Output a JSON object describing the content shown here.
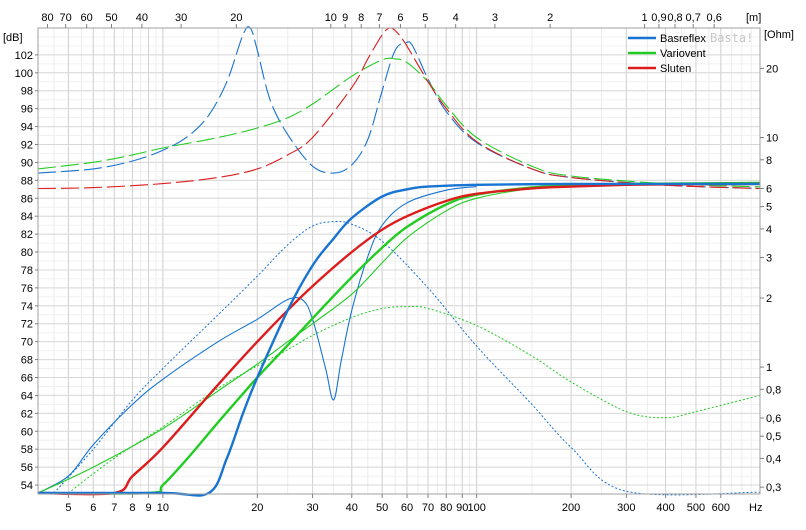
{
  "chart_data": {
    "type": "line",
    "watermark": "Basta!",
    "y_left_unit": "[dB]",
    "y_right_unit": "[Ohm]",
    "top_unit": "[m]",
    "x_unit": "Hz",
    "x_scale": "log",
    "y_right_scale": "log",
    "x_range": [
      4,
      800
    ],
    "y_left_range": [
      53,
      105
    ],
    "y_right_range": [
      0.28,
      30
    ],
    "grid": true,
    "legend_position": "top-right",
    "x_ticks": [
      {
        "v": 5,
        "label": "5"
      },
      {
        "v": 6,
        "label": "6"
      },
      {
        "v": 7,
        "label": "7"
      },
      {
        "v": 8,
        "label": "8"
      },
      {
        "v": 9,
        "label": "9"
      },
      {
        "v": 10,
        "label": "10"
      },
      {
        "v": 20,
        "label": "20"
      },
      {
        "v": 30,
        "label": "30"
      },
      {
        "v": 40,
        "label": "40"
      },
      {
        "v": 50,
        "label": "50"
      },
      {
        "v": 60,
        "label": "60"
      },
      {
        "v": 70,
        "label": "70"
      },
      {
        "v": 80,
        "label": "80"
      },
      {
        "v": 90,
        "label": "90"
      },
      {
        "v": 100,
        "label": "100"
      },
      {
        "v": 200,
        "label": "200"
      },
      {
        "v": 300,
        "label": "300"
      },
      {
        "v": 400,
        "label": "400"
      },
      {
        "v": 500,
        "label": "500"
      },
      {
        "v": 600,
        "label": "600"
      }
    ],
    "top_ticks": [
      {
        "v": 80,
        "label": "80"
      },
      {
        "v": 70,
        "label": "70"
      },
      {
        "v": 60,
        "label": "60"
      },
      {
        "v": 50,
        "label": "50"
      },
      {
        "v": 40,
        "label": "40"
      },
      {
        "v": 30,
        "label": "30"
      },
      {
        "v": 20,
        "label": "20"
      },
      {
        "v": 10,
        "label": "10"
      },
      {
        "v": 9,
        "label": "9"
      },
      {
        "v": 8,
        "label": "8"
      },
      {
        "v": 7,
        "label": "7"
      },
      {
        "v": 6,
        "label": "6"
      },
      {
        "v": 5,
        "label": "5"
      },
      {
        "v": 4,
        "label": "4"
      },
      {
        "v": 3,
        "label": "3"
      },
      {
        "v": 2,
        "label": "2"
      },
      {
        "v": 1,
        "label": "1"
      },
      {
        "v": 0.9,
        "label": "0,9"
      },
      {
        "v": 0.8,
        "label": "0,8"
      },
      {
        "v": 0.7,
        "label": "0,7"
      },
      {
        "v": 0.6,
        "label": "0,6"
      }
    ],
    "y_left_ticks": [
      {
        "v": 54,
        "label": "54"
      },
      {
        "v": 56,
        "label": "56"
      },
      {
        "v": 58,
        "label": "58"
      },
      {
        "v": 60,
        "label": "60"
      },
      {
        "v": 62,
        "label": "62"
      },
      {
        "v": 64,
        "label": "64"
      },
      {
        "v": 66,
        "label": "66"
      },
      {
        "v": 68,
        "label": "68"
      },
      {
        "v": 70,
        "label": "70"
      },
      {
        "v": 72,
        "label": "72"
      },
      {
        "v": 74,
        "label": "74"
      },
      {
        "v": 76,
        "label": "76"
      },
      {
        "v": 78,
        "label": "78"
      },
      {
        "v": 80,
        "label": "80"
      },
      {
        "v": 82,
        "label": "82"
      },
      {
        "v": 84,
        "label": "84"
      },
      {
        "v": 86,
        "label": "86"
      },
      {
        "v": 88,
        "label": "88"
      },
      {
        "v": 90,
        "label": "90"
      },
      {
        "v": 92,
        "label": "92"
      },
      {
        "v": 94,
        "label": "94"
      },
      {
        "v": 96,
        "label": "96"
      },
      {
        "v": 98,
        "label": "98"
      },
      {
        "v": 100,
        "label": "100"
      },
      {
        "v": 102,
        "label": "102"
      }
    ],
    "y_right_ticks": [
      {
        "v": 0.3,
        "label": "0,3"
      },
      {
        "v": 0.4,
        "label": "0,4"
      },
      {
        "v": 0.5,
        "label": "0,5"
      },
      {
        "v": 0.6,
        "label": "0,6"
      },
      {
        "v": 0.8,
        "label": "0,8"
      },
      {
        "v": 1,
        "label": "1"
      },
      {
        "v": 2,
        "label": "2"
      },
      {
        "v": 3,
        "label": "3"
      },
      {
        "v": 4,
        "label": "4"
      },
      {
        "v": 5,
        "label": "5"
      },
      {
        "v": 6,
        "label": "6"
      },
      {
        "v": 8,
        "label": "8"
      },
      {
        "v": 10,
        "label": "10"
      },
      {
        "v": 20,
        "label": "20"
      }
    ],
    "series": [
      {
        "name": "Basreflex",
        "color": "#1874d2",
        "style": "thick",
        "axis": "left",
        "x": [
          4,
          10,
          14,
          16,
          18,
          20,
          25,
          30,
          35,
          40,
          50,
          60,
          70,
          100,
          200,
          400,
          800
        ],
        "y": [
          53,
          53,
          53,
          57,
          62,
          66,
          73.5,
          78.5,
          81.5,
          83.8,
          86.2,
          87,
          87.3,
          87.5,
          87.6,
          87.6,
          87.6
        ]
      },
      {
        "name": "Variovent",
        "color": "#22cc22",
        "style": "thick",
        "axis": "left",
        "x": [
          4,
          9,
          10,
          12,
          15,
          20,
          25,
          30,
          40,
          50,
          60,
          80,
          100,
          150,
          200,
          300,
          800
        ],
        "y": [
          53,
          53,
          54,
          57,
          61,
          66,
          69.6,
          72.6,
          77.2,
          80.5,
          82.8,
          85.3,
          86.4,
          87.2,
          87.4,
          87.6,
          87.7
        ]
      },
      {
        "name": "Sluten",
        "color": "#dd1c1c",
        "style": "thick",
        "axis": "left",
        "x": [
          4,
          7,
          8,
          10,
          15,
          20,
          25,
          30,
          40,
          50,
          60,
          80,
          100,
          150,
          200,
          300,
          400,
          800
        ],
        "y": [
          53,
          53,
          55,
          58.2,
          65.2,
          70,
          73.5,
          76.2,
          80,
          82.5,
          84,
          85.7,
          86.5,
          87.1,
          87.3,
          87.5,
          87.55,
          87.6
        ]
      },
      {
        "name": "",
        "color": "#1874d2",
        "style": "thin",
        "axis": "left",
        "x": [
          4,
          5,
          6,
          8,
          10,
          15,
          20,
          25,
          28,
          30,
          33,
          35,
          37,
          40,
          45,
          50,
          60,
          80,
          100
        ],
        "y": [
          53,
          55,
          58.5,
          63,
          65.8,
          70,
          72.5,
          74.7,
          74.6,
          72.5,
          67,
          63.5,
          67.8,
          73.5,
          79.5,
          83,
          85.5,
          86.9,
          87.3
        ]
      },
      {
        "name": "",
        "color": "#22cc22",
        "style": "thin",
        "axis": "left",
        "x": [
          4,
          6,
          10,
          15,
          20,
          25,
          30,
          40,
          50,
          60,
          80,
          100,
          150,
          200,
          300,
          800
        ],
        "y": [
          53,
          56,
          60.3,
          64.5,
          67.5,
          70,
          72,
          75.3,
          78.8,
          81.6,
          84.6,
          86,
          87.1,
          87.4,
          87.6,
          87.7
        ]
      },
      {
        "name": "",
        "color": "#1874d2",
        "style": "dotted",
        "axis": "left",
        "x": [
          4.5,
          6,
          8,
          10,
          15,
          20,
          25,
          30,
          35,
          40,
          50,
          70,
          100,
          150,
          200,
          300,
          800
        ],
        "y": [
          53,
          58,
          63.5,
          67,
          73,
          77.3,
          80.8,
          82.9,
          83.4,
          83.1,
          81.2,
          76,
          69.5,
          63,
          58.2,
          53.3,
          53.2
        ]
      },
      {
        "name": "",
        "color": "#22cc22",
        "style": "dotted",
        "axis": "left",
        "x": [
          5,
          7,
          10,
          15,
          20,
          25,
          30,
          40,
          50,
          60,
          70,
          100,
          150,
          200,
          300,
          400,
          500,
          800
        ],
        "y": [
          53,
          57,
          60.5,
          64.8,
          67.3,
          69.1,
          70.7,
          72.7,
          73.7,
          73.9,
          73.7,
          71.8,
          68.4,
          65.5,
          62.2,
          61.5,
          62.2,
          64
        ]
      },
      {
        "name": "",
        "color": "#1874d2",
        "style": "dashed",
        "axis": "right",
        "x": [
          4,
          6,
          8,
          10,
          12,
          14,
          16,
          18,
          19,
          20,
          22,
          25,
          30,
          35,
          40,
          45,
          50,
          55,
          60,
          62,
          65,
          70,
          80,
          100,
          150,
          200,
          400,
          800
        ],
        "y": [
          7,
          7.3,
          7.9,
          8.8,
          10.1,
          12.5,
          17.5,
          28,
          30,
          24,
          14.5,
          10.3,
          7.5,
          7,
          7.6,
          9.8,
          16,
          24,
          26,
          25.5,
          22.5,
          18,
          13,
          9.5,
          7.3,
          6.7,
          6.2,
          6
        ]
      },
      {
        "name": "",
        "color": "#22cc22",
        "style": "dashed",
        "axis": "right",
        "x": [
          4,
          6,
          8,
          10,
          15,
          20,
          25,
          30,
          40,
          50,
          55,
          60,
          70,
          80,
          100,
          150,
          200,
          400,
          800
        ],
        "y": [
          7.3,
          7.8,
          8.4,
          9,
          10,
          11,
          12.2,
          14,
          18.5,
          21.8,
          22,
          21.2,
          17.5,
          13.8,
          10,
          7.5,
          6.8,
          6.3,
          6.1
        ]
      },
      {
        "name": "",
        "color": "#dd1c1c",
        "style": "dashed",
        "axis": "right",
        "x": [
          4,
          6,
          10,
          15,
          20,
          25,
          30,
          40,
          45,
          50,
          53,
          56,
          60,
          70,
          80,
          100,
          150,
          200,
          400,
          800
        ],
        "y": [
          6,
          6.05,
          6.3,
          6.7,
          7.3,
          8.4,
          10,
          16.5,
          22,
          28,
          30,
          28.5,
          25,
          17.5,
          13.4,
          9.6,
          7.3,
          6.7,
          6.2,
          6
        ]
      }
    ]
  }
}
